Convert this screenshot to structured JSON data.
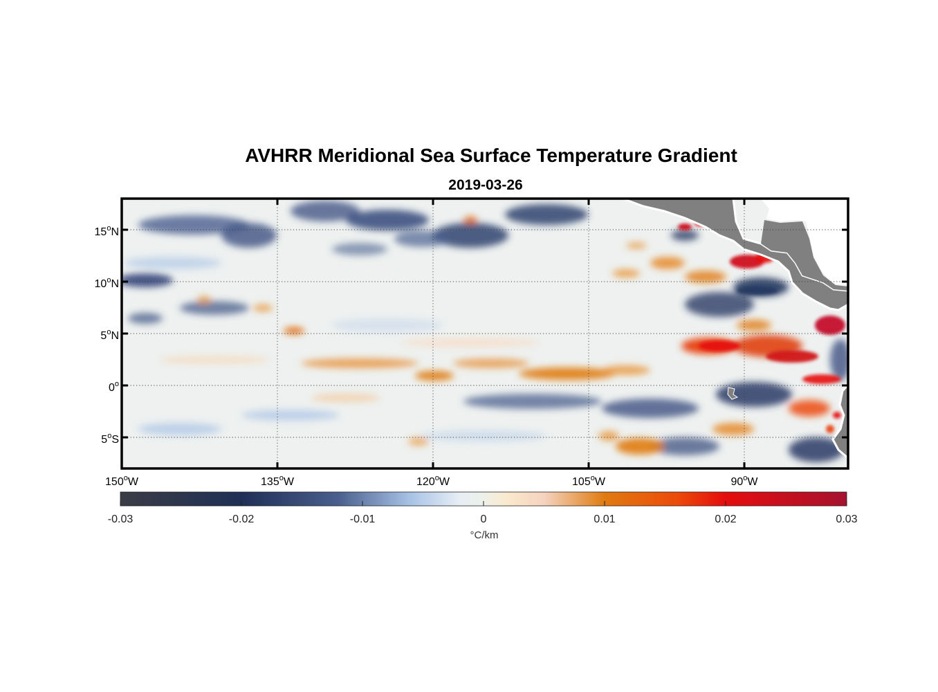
{
  "title": "AVHRR Meridional Sea Surface Temperature Gradient",
  "subtitle": "2019-03-26",
  "map": {
    "lon_range": [
      -150,
      -80
    ],
    "lat_range": [
      -8,
      18
    ],
    "lon_ticks": [
      {
        "value": -150,
        "deg": "150",
        "hemi": "W"
      },
      {
        "value": -135,
        "deg": "135",
        "hemi": "W"
      },
      {
        "value": -120,
        "deg": "120",
        "hemi": "W"
      },
      {
        "value": -105,
        "deg": "105",
        "hemi": "W"
      },
      {
        "value": -90,
        "deg": "90",
        "hemi": "W"
      }
    ],
    "lat_ticks": [
      {
        "value": 15,
        "deg": "15",
        "hemi": "N"
      },
      {
        "value": 10,
        "deg": "10",
        "hemi": "N"
      },
      {
        "value": 5,
        "deg": "5",
        "hemi": "N"
      },
      {
        "value": 0,
        "deg": "0",
        "hemi": ""
      },
      {
        "value": -5,
        "deg": "5",
        "hemi": "S"
      }
    ],
    "degree_symbol": "o",
    "land_color": "#808080",
    "gridline_style": "dotted"
  },
  "colorbar": {
    "range": [
      -0.03,
      0.03
    ],
    "ticks": [
      {
        "value": -0.03,
        "label": "-0.03"
      },
      {
        "value": -0.02,
        "label": "-0.02"
      },
      {
        "value": -0.01,
        "label": "-0.01"
      },
      {
        "value": 0,
        "label": "0"
      },
      {
        "value": 0.01,
        "label": "0.01"
      },
      {
        "value": 0.02,
        "label": "0.02"
      },
      {
        "value": 0.03,
        "label": "0.03"
      }
    ],
    "units_label": "°C/km",
    "stops": [
      {
        "value": -0.03,
        "color": "#3b3d45"
      },
      {
        "value": -0.02,
        "color": "#1f2f56"
      },
      {
        "value": -0.012,
        "color": "#4a5f8e"
      },
      {
        "value": -0.006,
        "color": "#a9c3e6"
      },
      {
        "value": -0.002,
        "color": "#e6eef4"
      },
      {
        "value": 0,
        "color": "#eef0ea"
      },
      {
        "value": 0.002,
        "color": "#fbe9cc"
      },
      {
        "value": 0.005,
        "color": "#f4d3bf"
      },
      {
        "value": 0.01,
        "color": "#e07b10"
      },
      {
        "value": 0.016,
        "color": "#ec4a0a"
      },
      {
        "value": 0.02,
        "color": "#e50d0d"
      },
      {
        "value": 0.03,
        "color": "#a5122e"
      }
    ]
  },
  "chart_data": {
    "type": "heatmap",
    "title": "AVHRR Meridional Sea Surface Temperature Gradient",
    "subtitle": "2019-03-26",
    "variable": "meridional SST gradient",
    "units": "°C/km",
    "xlabel": "",
    "ylabel": "",
    "x_range": [
      -150,
      -80
    ],
    "y_range": [
      -8,
      18
    ],
    "value_range": [
      -0.03,
      0.03
    ],
    "features": [
      {
        "lon": -130,
        "lat": 12.5,
        "value": -0.012
      },
      {
        "lon": -124,
        "lat": 16.5,
        "value": -0.014
      },
      {
        "lon": -117,
        "lat": 15.5,
        "value": -0.012
      },
      {
        "lon": -110,
        "lat": 16.5,
        "value": -0.015
      },
      {
        "lon": -143,
        "lat": 15.5,
        "value": -0.011
      },
      {
        "lon": -135,
        "lat": 14,
        "value": -0.01
      },
      {
        "lon": -147,
        "lat": 10,
        "value": -0.012
      },
      {
        "lon": -145,
        "lat": 6.3,
        "value": -0.01
      },
      {
        "lon": -134,
        "lat": 5.5,
        "value": 0.011
      },
      {
        "lon": -128,
        "lat": 2.4,
        "value": 0.006
      },
      {
        "lon": -120,
        "lat": 1.0,
        "value": 0.01
      },
      {
        "lon": -114,
        "lat": 2.2,
        "value": 0.007
      },
      {
        "lon": -108,
        "lat": 1.3,
        "value": 0.011
      },
      {
        "lon": -102,
        "lat": 1.8,
        "value": 0.009
      },
      {
        "lon": -97,
        "lat": 2.2,
        "value": 0.007
      },
      {
        "lon": -108,
        "lat": -1.5,
        "value": -0.01
      },
      {
        "lon": -100,
        "lat": -1.8,
        "value": -0.01
      },
      {
        "lon": -93,
        "lat": -2.0,
        "value": -0.009
      },
      {
        "lon": -87,
        "lat": -1.0,
        "value": -0.016
      },
      {
        "lon": -101,
        "lat": -6.0,
        "value": 0.011
      },
      {
        "lon": -96,
        "lat": -6.0,
        "value": -0.012
      },
      {
        "lon": -92,
        "lat": 3.8,
        "value": 0.018
      },
      {
        "lon": -86,
        "lat": 3.0,
        "value": 0.024
      },
      {
        "lon": -82,
        "lat": 5.8,
        "value": 0.028
      },
      {
        "lon": -83,
        "lat": 0.8,
        "value": 0.022
      },
      {
        "lon": -82.5,
        "lat": -3.5,
        "value": 0.02
      },
      {
        "lon": -89,
        "lat": 12.0,
        "value": 0.026
      },
      {
        "lon": -95,
        "lat": 15.5,
        "value": 0.025
      },
      {
        "lon": -90,
        "lat": 9.5,
        "value": -0.022
      },
      {
        "lon": -82,
        "lat": -7,
        "value": -0.022
      },
      {
        "lon": -98,
        "lat": 12.3,
        "value": 0.009
      },
      {
        "lon": -118,
        "lat": 16.2,
        "value": 0.014
      }
    ]
  }
}
